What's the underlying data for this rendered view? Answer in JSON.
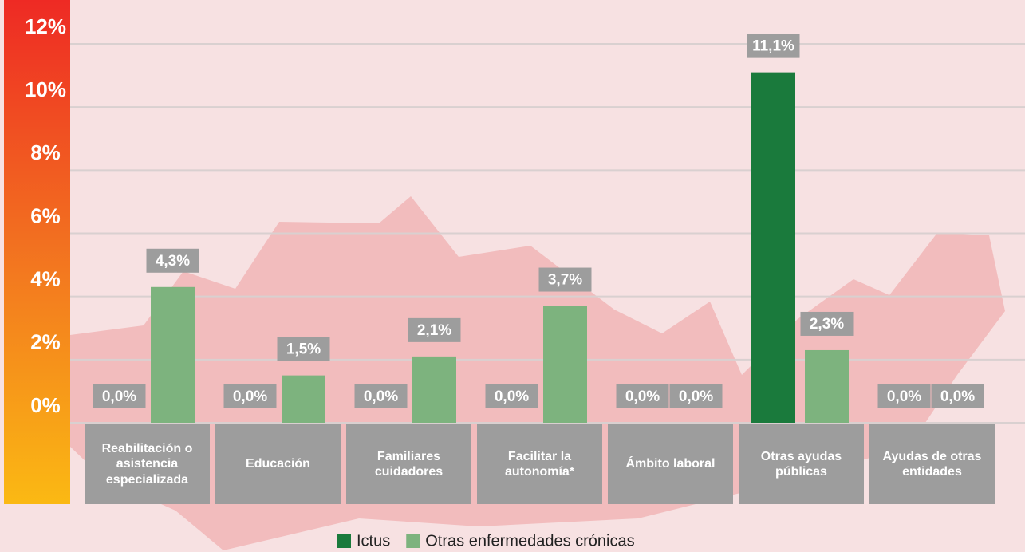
{
  "chart_data": {
    "type": "bar",
    "categories": [
      "Reabilitación o asistencia especializada",
      "Educación",
      "Familiares cuidadores",
      "Facilitar la autonomía*",
      "Ámbito laboral",
      "Otras ayudas públicas",
      "Ayudas de otras entidades"
    ],
    "series": [
      {
        "name": "Ictus",
        "color": "#1a7a3c",
        "values": [
          0,
          0,
          0,
          0,
          0,
          11.1,
          0
        ],
        "value_labels": [
          "0,0%",
          "0,0%",
          "0,0%",
          "0,0%",
          "0,0%",
          "11,1%",
          "0,0%"
        ]
      },
      {
        "name": "Otras enfermedades crónicas",
        "color": "#7db37e",
        "values": [
          4.3,
          1.5,
          2.1,
          3.7,
          0,
          2.3,
          0
        ],
        "value_labels": [
          "4,3%",
          "1,5%",
          "2,1%",
          "3,7%",
          "0,0%",
          "2,3%",
          "0,0%"
        ]
      }
    ],
    "ylim": [
      0,
      12
    ],
    "yticks": [
      {
        "value": 0,
        "label": "0%"
      },
      {
        "value": 2,
        "label": "2%"
      },
      {
        "value": 4,
        "label": "4%"
      },
      {
        "value": 6,
        "label": "6%"
      },
      {
        "value": 8,
        "label": "8%"
      },
      {
        "value": 10,
        "label": "10%"
      },
      {
        "value": 12,
        "label": "12%"
      }
    ],
    "grid": true
  }
}
